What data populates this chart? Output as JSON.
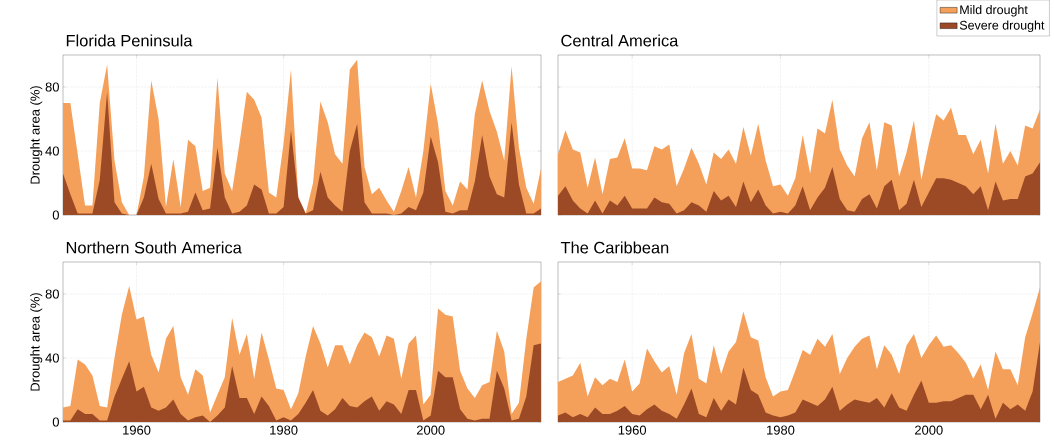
{
  "chart_data": [
    {
      "type": "area",
      "title": "Florida Peninsula",
      "ylabel": "Drought area (%)",
      "xlim": [
        1950,
        2015
      ],
      "ylim": [
        0,
        100
      ],
      "xticks": [
        1960,
        1980,
        2000
      ],
      "yticks": [
        0,
        40,
        80
      ],
      "grid": true,
      "tick_labels": "y",
      "x": [
        1950,
        1951,
        1952,
        1953,
        1954,
        1955,
        1956,
        1957,
        1958,
        1959,
        1960,
        1961,
        1962,
        1963,
        1964,
        1965,
        1966,
        1967,
        1968,
        1969,
        1970,
        1971,
        1972,
        1973,
        1974,
        1975,
        1976,
        1977,
        1978,
        1979,
        1980,
        1981,
        1982,
        1983,
        1984,
        1985,
        1986,
        1987,
        1988,
        1989,
        1990,
        1991,
        1992,
        1993,
        1994,
        1995,
        1996,
        1997,
        1998,
        1999,
        2000,
        2001,
        2002,
        2003,
        2004,
        2005,
        2006,
        2007,
        2008,
        2009,
        2010,
        2011,
        2012,
        2013,
        2014,
        2015
      ],
      "series": [
        {
          "color": "#f5a05a",
          "values": [
            70,
            70,
            38,
            6,
            6,
            70,
            94,
            34,
            8,
            0,
            0,
            24,
            84,
            60,
            5,
            35,
            5,
            47,
            43,
            15,
            17,
            86,
            26,
            15,
            45,
            77,
            72,
            61,
            14,
            11,
            45,
            91,
            11,
            1,
            20,
            71,
            58,
            38,
            32,
            91,
            97,
            30,
            13,
            17,
            9,
            2,
            15,
            30,
            11,
            40,
            82,
            57,
            15,
            6,
            21,
            16,
            63,
            84,
            65,
            52,
            34,
            93,
            42,
            17,
            7,
            29
          ]
        },
        {
          "color": "#9c4a26",
          "values": [
            26,
            13,
            1,
            1,
            1,
            22,
            77,
            8,
            1,
            0,
            0,
            11,
            32,
            10,
            1,
            1,
            1,
            2,
            14,
            3,
            4,
            42,
            11,
            1,
            2,
            6,
            19,
            16,
            1,
            1,
            5,
            53,
            11,
            1,
            3,
            27,
            11,
            6,
            2,
            40,
            57,
            8,
            1,
            1,
            1,
            0,
            1,
            5,
            3,
            14,
            49,
            33,
            2,
            1,
            3,
            3,
            21,
            50,
            24,
            13,
            11,
            58,
            19,
            1,
            1,
            4
          ]
        }
      ]
    },
    {
      "type": "area",
      "title": "Central America",
      "xlim": [
        1950,
        2015
      ],
      "ylim": [
        0,
        100
      ],
      "xticks": [
        1960,
        1980,
        2000
      ],
      "yticks": [
        0,
        40,
        80
      ],
      "grid": true,
      "tick_labels": false,
      "legend": "top right",
      "x": [
        1950,
        1951,
        1952,
        1953,
        1954,
        1955,
        1956,
        1957,
        1958,
        1959,
        1960,
        1961,
        1962,
        1963,
        1964,
        1965,
        1966,
        1967,
        1968,
        1969,
        1970,
        1971,
        1972,
        1973,
        1974,
        1975,
        1976,
        1977,
        1978,
        1979,
        1980,
        1981,
        1982,
        1983,
        1984,
        1985,
        1986,
        1987,
        1988,
        1989,
        1990,
        1991,
        1992,
        1993,
        1994,
        1995,
        1996,
        1997,
        1998,
        1999,
        2000,
        2001,
        2002,
        2003,
        2004,
        2005,
        2006,
        2007,
        2008,
        2009,
        2010,
        2011,
        2012,
        2013,
        2014,
        2015
      ],
      "series": [
        {
          "name": "Mild drought",
          "color": "#f5a05a",
          "values": [
            38,
            53,
            41,
            39,
            17,
            36,
            13,
            35,
            36,
            48,
            29,
            29,
            28,
            43,
            41,
            44,
            18,
            29,
            42,
            32,
            19,
            39,
            35,
            41,
            32,
            55,
            37,
            57,
            34,
            18,
            19,
            12,
            23,
            50,
            26,
            54,
            51,
            72,
            41,
            31,
            24,
            48,
            58,
            28,
            58,
            56,
            24,
            39,
            59,
            22,
            44,
            63,
            59,
            67,
            50,
            50,
            38,
            47,
            26,
            57,
            32,
            40,
            31,
            56,
            54,
            66
          ]
        },
        {
          "name": "Severe drought",
          "color": "#9c4a26",
          "values": [
            12,
            18,
            9,
            4,
            1,
            9,
            1,
            9,
            6,
            12,
            4,
            4,
            4,
            11,
            8,
            7,
            1,
            3,
            8,
            6,
            2,
            15,
            9,
            12,
            5,
            21,
            8,
            16,
            6,
            1,
            2,
            1,
            6,
            18,
            3,
            11,
            17,
            30,
            10,
            3,
            2,
            10,
            13,
            4,
            18,
            22,
            3,
            7,
            22,
            5,
            14,
            23,
            23,
            22,
            20,
            18,
            13,
            18,
            3,
            21,
            9,
            10,
            10,
            24,
            26,
            33
          ]
        }
      ]
    },
    {
      "type": "area",
      "title": "Northern South America",
      "ylabel": "Drought area (%)",
      "xlim": [
        1950,
        2015
      ],
      "ylim": [
        0,
        100
      ],
      "xticks": [
        1960,
        1980,
        2000
      ],
      "yticks": [
        0,
        40,
        80
      ],
      "grid": true,
      "x": [
        1950,
        1951,
        1952,
        1953,
        1954,
        1955,
        1956,
        1957,
        1958,
        1959,
        1960,
        1961,
        1962,
        1963,
        1964,
        1965,
        1966,
        1967,
        1968,
        1969,
        1970,
        1971,
        1972,
        1973,
        1974,
        1975,
        1976,
        1977,
        1978,
        1979,
        1980,
        1981,
        1982,
        1983,
        1984,
        1985,
        1986,
        1987,
        1988,
        1989,
        1990,
        1991,
        1992,
        1993,
        1994,
        1995,
        1996,
        1997,
        1998,
        1999,
        2000,
        2001,
        2002,
        2003,
        2004,
        2005,
        2006,
        2007,
        2008,
        2009,
        2010,
        2011,
        2012,
        2013,
        2014,
        2015
      ],
      "series": [
        {
          "color": "#f5a05a",
          "values": [
            9,
            10,
            39,
            36,
            29,
            10,
            9,
            40,
            67,
            85,
            64,
            66,
            42,
            31,
            52,
            60,
            28,
            17,
            33,
            29,
            6,
            17,
            28,
            65,
            42,
            55,
            27,
            56,
            39,
            21,
            20,
            8,
            18,
            41,
            60,
            49,
            34,
            48,
            48,
            36,
            48,
            56,
            53,
            41,
            54,
            52,
            27,
            49,
            54,
            11,
            17,
            71,
            67,
            66,
            32,
            21,
            15,
            23,
            25,
            57,
            44,
            5,
            12,
            52,
            84,
            88
          ]
        },
        {
          "color": "#9c4a26",
          "values": [
            1,
            1,
            8,
            5,
            5,
            1,
            1,
            16,
            27,
            38,
            19,
            22,
            9,
            7,
            9,
            14,
            5,
            1,
            3,
            4,
            0,
            4,
            9,
            35,
            15,
            15,
            5,
            16,
            10,
            1,
            3,
            1,
            5,
            12,
            20,
            7,
            4,
            8,
            15,
            10,
            9,
            13,
            16,
            7,
            13,
            11,
            5,
            20,
            20,
            1,
            4,
            32,
            28,
            28,
            8,
            2,
            1,
            2,
            2,
            32,
            21,
            1,
            2,
            16,
            48,
            49
          ]
        }
      ]
    },
    {
      "type": "area",
      "title": "The Caribbean",
      "xlim": [
        1950,
        2015
      ],
      "ylim": [
        0,
        100
      ],
      "xticks": [
        1960,
        1980,
        2000
      ],
      "yticks": [
        0,
        40,
        80
      ],
      "grid": true,
      "tick_labels": "x",
      "x": [
        1950,
        1951,
        1952,
        1953,
        1954,
        1955,
        1956,
        1957,
        1958,
        1959,
        1960,
        1961,
        1962,
        1963,
        1964,
        1965,
        1966,
        1967,
        1968,
        1969,
        1970,
        1971,
        1972,
        1973,
        1974,
        1975,
        1976,
        1977,
        1978,
        1979,
        1980,
        1981,
        1982,
        1983,
        1984,
        1985,
        1986,
        1987,
        1988,
        1989,
        1990,
        1991,
        1992,
        1993,
        1994,
        1995,
        1996,
        1997,
        1998,
        1999,
        2000,
        2001,
        2002,
        2003,
        2004,
        2005,
        2006,
        2007,
        2008,
        2009,
        2010,
        2011,
        2012,
        2013,
        2014,
        2015
      ],
      "series": [
        {
          "color": "#f5a05a",
          "values": [
            25,
            27,
            29,
            37,
            16,
            28,
            23,
            27,
            25,
            39,
            19,
            24,
            46,
            38,
            31,
            35,
            17,
            43,
            55,
            27,
            24,
            48,
            30,
            44,
            50,
            69,
            53,
            51,
            28,
            16,
            19,
            20,
            32,
            45,
            42,
            52,
            47,
            55,
            30,
            40,
            47,
            52,
            54,
            33,
            48,
            42,
            30,
            48,
            55,
            40,
            48,
            54,
            47,
            48,
            43,
            37,
            27,
            36,
            20,
            44,
            33,
            33,
            23,
            53,
            68,
            84
          ]
        },
        {
          "color": "#9c4a26",
          "values": [
            4,
            6,
            3,
            5,
            3,
            9,
            5,
            5,
            7,
            10,
            5,
            4,
            8,
            11,
            7,
            5,
            2,
            11,
            21,
            5,
            3,
            15,
            7,
            14,
            11,
            34,
            20,
            17,
            6,
            4,
            3,
            4,
            6,
            14,
            12,
            10,
            14,
            22,
            7,
            11,
            14,
            13,
            12,
            15,
            9,
            18,
            9,
            7,
            17,
            26,
            12,
            12,
            13,
            13,
            15,
            17,
            17,
            8,
            17,
            2,
            12,
            8,
            11,
            7,
            19,
            50
          ]
        }
      ]
    }
  ]
}
